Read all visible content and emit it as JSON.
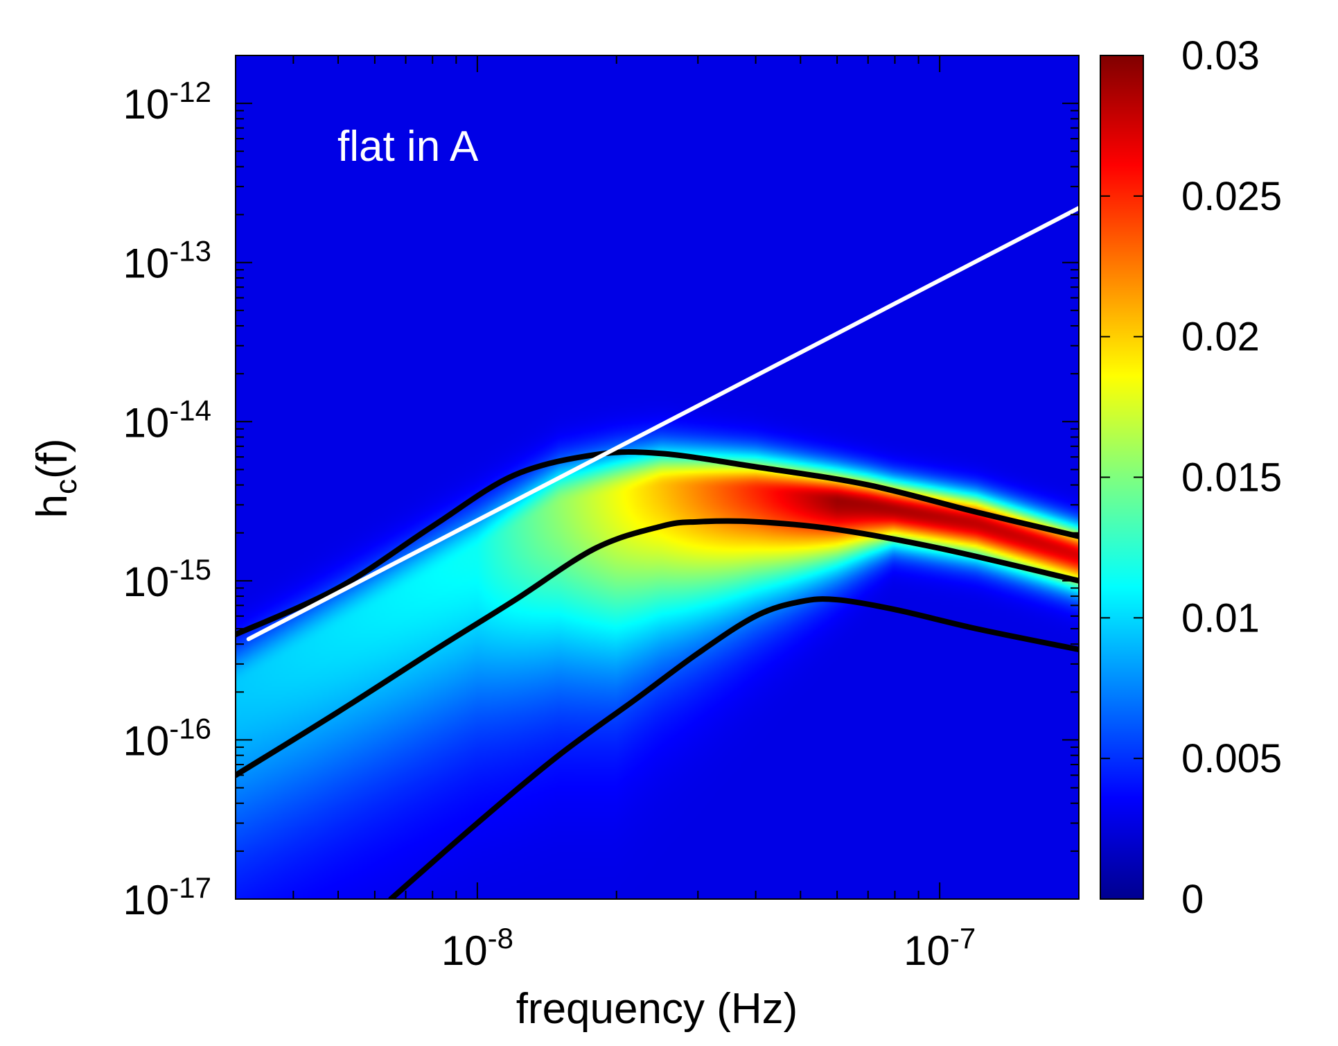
{
  "chart_data": {
    "type": "heatmap",
    "title": "",
    "annotation": "flat in A",
    "xlabel": "frequency (Hz)",
    "ylabel_main": "h",
    "ylabel_sub": "c",
    "ylabel_tail": "(f)",
    "x_scale": "log",
    "y_scale": "log",
    "xlim": [
      3e-09,
      2e-07
    ],
    "ylim": [
      1e-17,
      2e-12
    ],
    "x_ticks": [
      {
        "value": 1e-08,
        "base": "10",
        "exp": "-8"
      },
      {
        "value": 1e-07,
        "base": "10",
        "exp": "-7"
      }
    ],
    "y_ticks": [
      {
        "value": 1e-12,
        "base": "10",
        "exp": "-12"
      },
      {
        "value": 1e-13,
        "base": "10",
        "exp": "-13"
      },
      {
        "value": 1e-14,
        "base": "10",
        "exp": "-14"
      },
      {
        "value": 1e-15,
        "base": "10",
        "exp": "-15"
      },
      {
        "value": 1e-16,
        "base": "10",
        "exp": "-16"
      },
      {
        "value": 1e-17,
        "base": "10",
        "exp": "-17"
      }
    ],
    "colorbar": {
      "range": [
        0,
        0.03
      ],
      "ticks": [
        {
          "value": 0,
          "label": "0"
        },
        {
          "value": 0.005,
          "label": "0.005"
        },
        {
          "value": 0.01,
          "label": "0.01"
        },
        {
          "value": 0.015,
          "label": "0.015"
        },
        {
          "value": 0.02,
          "label": "0.02"
        },
        {
          "value": 0.025,
          "label": "0.025"
        },
        {
          "value": 0.03,
          "label": "0.03"
        }
      ],
      "colormap": "jet"
    },
    "series": [
      {
        "name": "upper contour",
        "color": "#000000",
        "points": [
          [
            3e-09,
            4.6e-16
          ],
          [
            5e-09,
            9e-16
          ],
          [
            8e-09,
            2.2e-15
          ],
          [
            1.2e-08,
            4.6e-15
          ],
          [
            1.8e-08,
            6.2e-15
          ],
          [
            2.5e-08,
            6.3e-15
          ],
          [
            4e-08,
            5.2e-15
          ],
          [
            7e-08,
            4e-15
          ],
          [
            1.2e-07,
            2.7e-15
          ],
          [
            2e-07,
            1.9e-15
          ]
        ]
      },
      {
        "name": "median contour",
        "color": "#000000",
        "points": [
          [
            3e-09,
            6e-17
          ],
          [
            5e-09,
            1.5e-16
          ],
          [
            8e-09,
            3.6e-16
          ],
          [
            1.2e-08,
            7.5e-16
          ],
          [
            1.8e-08,
            1.6e-15
          ],
          [
            2.5e-08,
            2.2e-15
          ],
          [
            3e-08,
            2.35e-15
          ],
          [
            4e-08,
            2.35e-15
          ],
          [
            6e-08,
            2.1e-15
          ],
          [
            1e-07,
            1.6e-15
          ],
          [
            2e-07,
            1e-15
          ]
        ]
      },
      {
        "name": "lower contour",
        "color": "#000000",
        "points": [
          [
            6.5e-09,
            1e-17
          ],
          [
            1e-08,
            3e-17
          ],
          [
            1.5e-08,
            8e-17
          ],
          [
            2.2e-08,
            1.8e-16
          ],
          [
            3e-08,
            3.5e-16
          ],
          [
            4e-08,
            6e-16
          ],
          [
            5e-08,
            7.4e-16
          ],
          [
            6e-08,
            7.6e-16
          ],
          [
            8e-08,
            6.6e-16
          ],
          [
            1.2e-07,
            5e-16
          ],
          [
            2e-07,
            3.7e-16
          ]
        ]
      },
      {
        "name": "power-law line",
        "color": "#ffffff",
        "points": [
          [
            3.2e-09,
            4.3e-16
          ],
          [
            2e-07,
            2.2e-13
          ]
        ]
      }
    ],
    "heatmap_ridge": [
      [
        3e-09,
        2.2e-16
      ],
      [
        8e-09,
        1.1e-15
      ],
      [
        1.5e-08,
        3e-15
      ],
      [
        2.5e-08,
        3.9e-15
      ],
      [
        4e-08,
        3.7e-15
      ],
      [
        7e-08,
        3e-15
      ],
      [
        1.2e-07,
        2.3e-15
      ],
      [
        2e-07,
        1.45e-15
      ]
    ],
    "heatmap_peak": {
      "x": 6e-08,
      "y": 3e-15,
      "value": 0.029
    }
  }
}
